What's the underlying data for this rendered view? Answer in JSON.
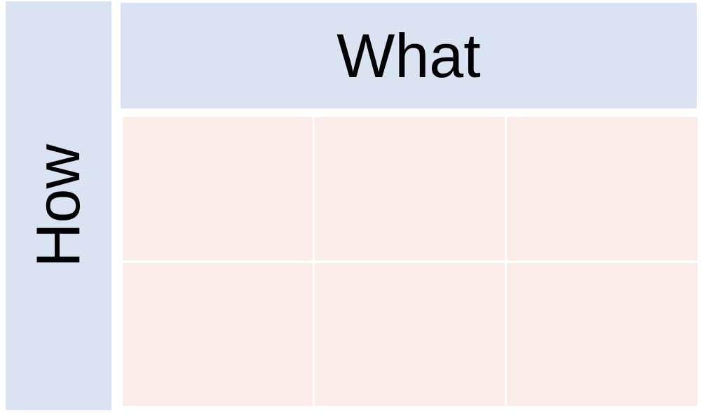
{
  "diagram": {
    "row_axis_label": "How",
    "column_axis_label": "What",
    "rows": 2,
    "columns": 3
  },
  "colors": {
    "band_fill": "#dae3f2",
    "cell_fill": "#fbece8",
    "background": "#ffffff",
    "text": "#000000"
  }
}
